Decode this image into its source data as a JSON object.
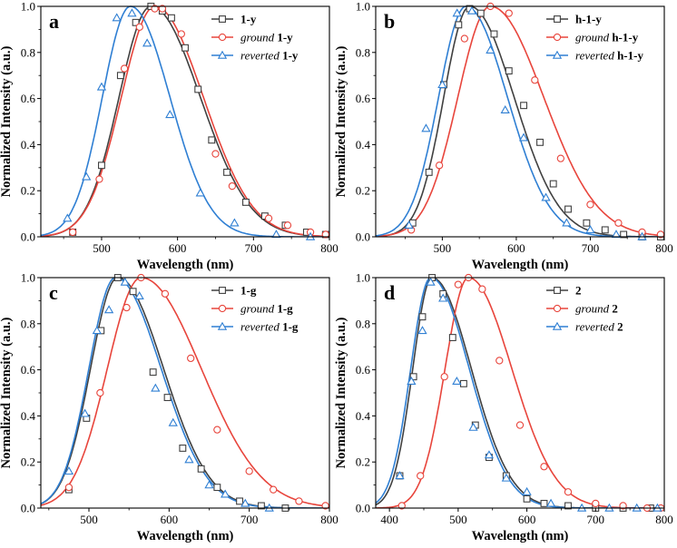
{
  "chart_data": [
    {
      "type": "line",
      "panel_label": "a",
      "xlabel": "Wavelength (nm)",
      "ylabel": "Normalized Intensity (a.u.)",
      "xlim": [
        420,
        800
      ],
      "ylim": [
        0,
        1.0
      ],
      "xticks": [
        500,
        600,
        700,
        800
      ],
      "yticks": [
        0.0,
        0.2,
        0.4,
        0.6,
        0.8,
        1.0
      ],
      "legend_position": "top-right",
      "series": [
        {
          "name": "1-y",
          "name_prefix": "",
          "name_main": "1-y",
          "color": "#404040",
          "marker": "square",
          "peak": 565,
          "sigma_left": 42,
          "sigma_right": 65,
          "x": [
            462,
            500,
            525,
            545,
            565,
            580,
            592,
            610,
            627,
            645,
            665,
            690,
            715,
            742,
            770,
            795
          ],
          "y": [
            0.02,
            0.31,
            0.7,
            0.93,
            1.0,
            0.98,
            0.95,
            0.82,
            0.64,
            0.42,
            0.28,
            0.15,
            0.09,
            0.05,
            0.02,
            0.01
          ]
        },
        {
          "name": "ground 1-y",
          "name_prefix": "ground",
          "name_main": "1-y",
          "color": "#e8453c",
          "marker": "circle",
          "peak": 570,
          "sigma_left": 44,
          "sigma_right": 64,
          "x": [
            462,
            497,
            530,
            550,
            570,
            580,
            605,
            650,
            672,
            720,
            745,
            775,
            795
          ],
          "y": [
            0.02,
            0.25,
            0.73,
            0.91,
            0.99,
            0.99,
            0.88,
            0.36,
            0.22,
            0.08,
            0.05,
            0.02,
            0.01
          ]
        },
        {
          "name": "reverted 1-y",
          "name_prefix": "reverted",
          "name_main": "1-y",
          "color": "#2f7fd3",
          "marker": "triangle",
          "peak": 538,
          "sigma_left": 37,
          "sigma_right": 52,
          "x": [
            455,
            480,
            500,
            520,
            540,
            560,
            590,
            630,
            675,
            730,
            775
          ],
          "y": [
            0.08,
            0.26,
            0.65,
            0.95,
            0.97,
            0.84,
            0.53,
            0.19,
            0.06,
            0.01,
            0.0
          ]
        }
      ]
    },
    {
      "type": "line",
      "panel_label": "b",
      "xlabel": "Wavelength (nm)",
      "ylabel": "Normalized Intensity (a.u.)",
      "xlim": [
        410,
        800
      ],
      "ylim": [
        0,
        1.0
      ],
      "xticks": [
        500,
        600,
        700,
        800
      ],
      "yticks": [
        0.0,
        0.2,
        0.4,
        0.6,
        0.8,
        1.0
      ],
      "legend_position": "top-right",
      "series": [
        {
          "name": "h-1-y",
          "name_prefix": "",
          "name_main": "h-1-y",
          "color": "#404040",
          "marker": "square",
          "peak": 537,
          "sigma_left": 35,
          "sigma_right": 60,
          "x": [
            460,
            482,
            502,
            522,
            537,
            552,
            570,
            590,
            610,
            632,
            650,
            670,
            695,
            720,
            745,
            770,
            795
          ],
          "y": [
            0.06,
            0.28,
            0.66,
            0.92,
            0.99,
            0.97,
            0.88,
            0.72,
            0.57,
            0.41,
            0.23,
            0.12,
            0.06,
            0.03,
            0.01,
            0.0,
            0.0
          ]
        },
        {
          "name": "ground h-1-y",
          "name_prefix": "ground",
          "name_main": "h-1-y",
          "color": "#e8453c",
          "marker": "circle",
          "peak": 565,
          "sigma_left": 44,
          "sigma_right": 72,
          "x": [
            458,
            496,
            530,
            565,
            590,
            625,
            660,
            700,
            738,
            770,
            795
          ],
          "y": [
            0.03,
            0.31,
            0.86,
            1.0,
            0.97,
            0.68,
            0.34,
            0.14,
            0.06,
            0.02,
            0.01
          ]
        },
        {
          "name": "reverted h-1-y",
          "name_prefix": "reverted",
          "name_main": "h-1-y",
          "color": "#2f7fd3",
          "marker": "triangle",
          "peak": 532,
          "sigma_left": 37,
          "sigma_right": 56,
          "x": [
            455,
            478,
            500,
            520,
            540,
            565,
            585,
            610,
            640,
            668,
            700,
            735,
            770
          ],
          "y": [
            0.05,
            0.47,
            0.66,
            0.97,
            0.98,
            0.81,
            0.55,
            0.43,
            0.17,
            0.06,
            0.03,
            0.01,
            0.0
          ]
        }
      ]
    },
    {
      "type": "line",
      "panel_label": "c",
      "xlabel": "Wavelength (nm)",
      "ylabel": "Normalized Intensity (a.u.)",
      "xlim": [
        440,
        800
      ],
      "ylim": [
        0,
        1.0
      ],
      "xticks": [
        500,
        600,
        700,
        800
      ],
      "yticks": [
        0.0,
        0.2,
        0.4,
        0.6,
        0.8,
        1.0
      ],
      "legend_position": "top-right",
      "series": [
        {
          "name": "1-g",
          "name_prefix": "",
          "name_main": "1-g",
          "color": "#404040",
          "marker": "square",
          "peak": 536,
          "sigma_left": 34,
          "sigma_right": 57,
          "x": [
            475,
            497,
            515,
            536,
            555,
            580,
            598,
            617,
            640,
            660,
            688,
            715,
            745
          ],
          "y": [
            0.08,
            0.39,
            0.77,
            1.0,
            0.94,
            0.59,
            0.48,
            0.26,
            0.17,
            0.09,
            0.03,
            0.01,
            0.0
          ]
        },
        {
          "name": "ground 1-g",
          "name_prefix": "ground",
          "name_main": "1-g",
          "color": "#e8453c",
          "marker": "circle",
          "peak": 565,
          "sigma_left": 42,
          "sigma_right": 75,
          "x": [
            475,
            514,
            547,
            565,
            595,
            627,
            660,
            700,
            730,
            762,
            795
          ],
          "y": [
            0.09,
            0.5,
            0.87,
            1.0,
            0.93,
            0.65,
            0.34,
            0.16,
            0.08,
            0.03,
            0.01
          ]
        },
        {
          "name": "reverted 1-g",
          "name_prefix": "reverted",
          "name_main": "1-g",
          "color": "#2f7fd3",
          "marker": "triangle",
          "peak": 533,
          "sigma_left": 33,
          "sigma_right": 57,
          "x": [
            475,
            495,
            510,
            525,
            545,
            563,
            583,
            605,
            625,
            650,
            670,
            695,
            725
          ],
          "y": [
            0.16,
            0.41,
            0.77,
            0.86,
            0.98,
            0.92,
            0.52,
            0.37,
            0.21,
            0.1,
            0.06,
            0.02,
            0.0
          ]
        }
      ]
    },
    {
      "type": "line",
      "panel_label": "d",
      "xlabel": "Wavelength (nm)",
      "ylabel": "Normalized Intensity (a.u.)",
      "xlim": [
        380,
        800
      ],
      "ylim": [
        0,
        1.0
      ],
      "xticks": [
        400,
        500,
        600,
        700,
        800
      ],
      "yticks": [
        0.0,
        0.2,
        0.4,
        0.6,
        0.8,
        1.0
      ],
      "legend_position": "top-right",
      "series": [
        {
          "name": "2",
          "name_prefix": "",
          "name_main": "2",
          "color": "#404040",
          "marker": "square",
          "peak": 462,
          "sigma_left": 28,
          "sigma_right": 57,
          "x": [
            415,
            435,
            448,
            462,
            478,
            492,
            508,
            525,
            545,
            570,
            600,
            625,
            660,
            700,
            740,
            780
          ],
          "y": [
            0.14,
            0.57,
            0.83,
            1.0,
            0.93,
            0.74,
            0.54,
            0.36,
            0.22,
            0.14,
            0.04,
            0.02,
            0.01,
            0.0,
            0.0,
            0.0
          ]
        },
        {
          "name": "ground 2",
          "name_prefix": "ground",
          "name_main": "2",
          "color": "#e8453c",
          "marker": "circle",
          "peak": 515,
          "sigma_left": 34,
          "sigma_right": 63,
          "x": [
            418,
            445,
            480,
            500,
            515,
            535,
            560,
            590,
            625,
            660,
            700,
            740,
            775,
            795
          ],
          "y": [
            0.01,
            0.14,
            0.57,
            0.97,
            1.0,
            0.95,
            0.64,
            0.36,
            0.18,
            0.07,
            0.02,
            0.01,
            0.0,
            0.0
          ]
        },
        {
          "name": "reverted 2",
          "name_prefix": "reverted",
          "name_main": "2",
          "color": "#2f7fd3",
          "marker": "triangle",
          "peak": 460,
          "sigma_left": 29,
          "sigma_right": 56,
          "x": [
            415,
            432,
            448,
            460,
            478,
            498,
            522,
            545,
            570,
            600,
            635,
            680,
            720,
            760,
            790
          ],
          "y": [
            0.14,
            0.55,
            0.77,
            0.98,
            0.91,
            0.55,
            0.35,
            0.23,
            0.13,
            0.07,
            0.02,
            0.0,
            0.0,
            0.0,
            0.0
          ]
        }
      ]
    }
  ]
}
